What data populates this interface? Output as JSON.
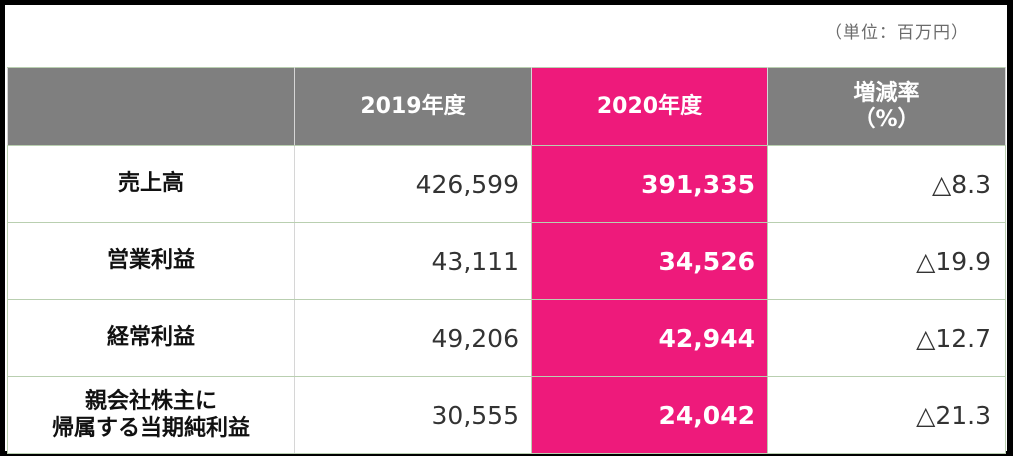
{
  "unit_label": "（単位：百万円）",
  "colors": {
    "header_gray": "#7f7f7f",
    "highlight_pink": "#ee1a7b",
    "border_green": "#b9cfb0"
  },
  "table": {
    "headers": [
      "",
      "2019年度",
      "2020年度",
      "増減率\n（%）"
    ],
    "header_rate_line1": "増減率",
    "header_rate_line2": "（%）",
    "rows": [
      {
        "label": "売上高",
        "label_line1": "売上高",
        "label_line2": "",
        "fy2019": "426,599",
        "fy2020": "391,335",
        "change": "△8.3"
      },
      {
        "label": "営業利益",
        "label_line1": "営業利益",
        "label_line2": "",
        "fy2019": "43,111",
        "fy2020": "34,526",
        "change": "△19.9"
      },
      {
        "label": "経常利益",
        "label_line1": "経常利益",
        "label_line2": "",
        "fy2019": "49,206",
        "fy2020": "42,944",
        "change": "△12.7"
      },
      {
        "label": "親会社株主に帰属する当期純利益",
        "label_line1": "親会社株主に",
        "label_line2": "帰属する当期純利益",
        "fy2019": "30,555",
        "fy2020": "24,042",
        "change": "△21.3"
      }
    ]
  }
}
